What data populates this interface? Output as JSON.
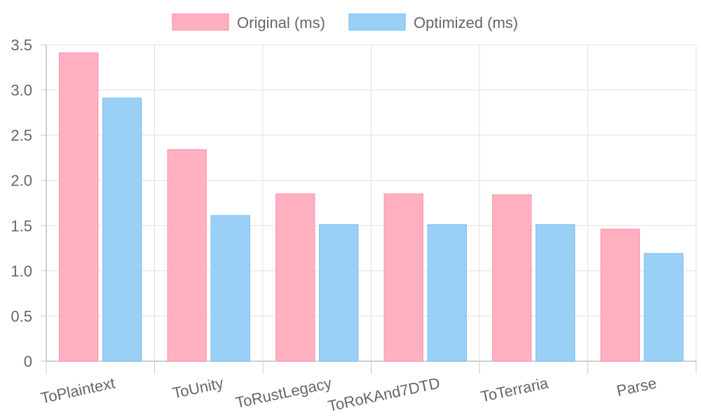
{
  "chart_data": {
    "type": "bar",
    "categories": [
      "ToPlaintext",
      "ToUnity",
      "ToRustLegacy",
      "ToRoKAnd7DTD",
      "ToTerraria",
      "Parse"
    ],
    "series": [
      {
        "name": "Original (ms)",
        "values": [
          3.41,
          2.34,
          1.85,
          1.85,
          1.84,
          1.46
        ],
        "color": "#ffb1c1",
        "border": "#ff9fb4"
      },
      {
        "name": "Optimized (ms)",
        "values": [
          2.91,
          1.61,
          1.51,
          1.51,
          1.51,
          1.19
        ],
        "color": "#9ad0f5",
        "border": "#88c7f3"
      }
    ],
    "ylim": [
      0,
      3.5
    ],
    "yticks": [
      "0",
      "0.5",
      "1.0",
      "1.5",
      "2.0",
      "2.5",
      "3.0",
      "3.5"
    ],
    "ytick_values": [
      0,
      0.5,
      1.0,
      1.5,
      2.0,
      2.5,
      3.0,
      3.5
    ],
    "grid": true,
    "legend_position": "top"
  }
}
